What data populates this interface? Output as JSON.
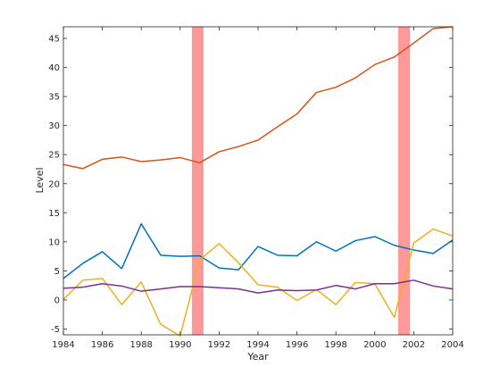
{
  "chart_data": {
    "type": "line",
    "title": "",
    "xlabel": "Year",
    "ylabel": "Level",
    "xlim": [
      1984,
      2004
    ],
    "ylim": [
      -6,
      47
    ],
    "xticks": [
      1984,
      1986,
      1988,
      1990,
      1992,
      1994,
      1996,
      1998,
      2000,
      2002,
      2004
    ],
    "yticks": [
      -5,
      0,
      5,
      10,
      15,
      20,
      25,
      30,
      35,
      40,
      45
    ],
    "grid": false,
    "legend": "none",
    "shaded_regions": [
      {
        "x_start": 1990.6,
        "x_end": 1991.2,
        "color": "#ff9999"
      },
      {
        "x_start": 2001.2,
        "x_end": 2001.8,
        "color": "#ff9999"
      }
    ],
    "x": [
      1984,
      1985,
      1986,
      1987,
      1988,
      1989,
      1990,
      1991,
      1992,
      1993,
      1994,
      1995,
      1996,
      1997,
      1998,
      1999,
      2000,
      2001,
      2002,
      2003,
      2004
    ],
    "series": [
      {
        "color": "#d95319",
        "values": [
          23.3,
          22.6,
          24.2,
          24.6,
          23.8,
          24.1,
          24.5,
          23.6,
          25.5,
          26.4,
          27.5,
          29.8,
          32.0,
          35.7,
          36.6,
          38.2,
          40.5,
          41.8,
          44.2,
          46.7,
          47.0
        ]
      },
      {
        "color": "#0072bd",
        "values": [
          3.7,
          6.3,
          8.3,
          5.4,
          13.1,
          7.7,
          7.5,
          7.6,
          5.5,
          5.2,
          9.2,
          7.7,
          7.6,
          10.0,
          8.4,
          10.2,
          10.9,
          9.4,
          8.6,
          8.0,
          10.3
        ]
      },
      {
        "color": "#edb120",
        "values": [
          0.1,
          3.4,
          3.7,
          -0.8,
          3.1,
          -4.2,
          -6.2,
          6.9,
          9.7,
          6.4,
          2.6,
          2.2,
          -0.1,
          1.8,
          -0.8,
          3.0,
          2.8,
          -3.0,
          9.8,
          12.2,
          11.0
        ]
      },
      {
        "color": "#7e2f8e",
        "values": [
          2.0,
          2.2,
          2.8,
          2.4,
          1.5,
          1.9,
          2.3,
          2.3,
          2.1,
          1.9,
          1.2,
          1.7,
          1.6,
          1.7,
          2.5,
          1.9,
          2.8,
          2.8,
          3.4,
          2.4,
          1.9
        ]
      }
    ]
  }
}
